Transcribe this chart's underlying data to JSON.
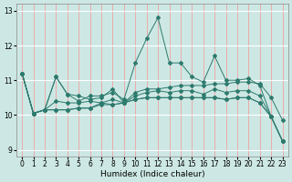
{
  "title": "",
  "xlabel": "Humidex (Indice chaleur)",
  "ylabel": "",
  "background_color": "#cde8e4",
  "grid_color": "#ffffff",
  "line_color": "#2d7a6e",
  "xlim": [
    -0.5,
    23.5
  ],
  "ylim": [
    8.8,
    13.2
  ],
  "yticks": [
    9,
    10,
    11,
    12,
    13
  ],
  "xticks": [
    0,
    1,
    2,
    3,
    4,
    5,
    6,
    7,
    8,
    9,
    10,
    11,
    12,
    13,
    14,
    15,
    16,
    17,
    18,
    19,
    20,
    21,
    22,
    23
  ],
  "series": [
    [
      11.2,
      10.05,
      10.15,
      11.1,
      10.6,
      10.4,
      10.55,
      10.55,
      10.65,
      10.45,
      11.5,
      12.2,
      12.8,
      11.5,
      11.5,
      11.1,
      10.95,
      11.7,
      11.0,
      11.0,
      11.05,
      10.85,
      9.95,
      9.25
    ],
    [
      11.2,
      10.05,
      10.15,
      10.4,
      10.35,
      10.35,
      10.4,
      10.35,
      10.45,
      10.35,
      10.65,
      10.75,
      10.75,
      10.8,
      10.85,
      10.85,
      10.85,
      10.9,
      10.9,
      10.95,
      10.95,
      10.9,
      10.5,
      9.85
    ],
    [
      11.2,
      10.05,
      10.15,
      11.1,
      10.6,
      10.55,
      10.45,
      10.5,
      10.75,
      10.35,
      10.55,
      10.65,
      10.7,
      10.65,
      10.7,
      10.7,
      10.6,
      10.75,
      10.65,
      10.7,
      10.7,
      10.55,
      9.95,
      9.25
    ],
    [
      11.2,
      10.05,
      10.15,
      10.15,
      10.15,
      10.2,
      10.2,
      10.35,
      10.3,
      10.35,
      10.45,
      10.5,
      10.5,
      10.5,
      10.5,
      10.5,
      10.5,
      10.5,
      10.45,
      10.5,
      10.5,
      10.35,
      9.95,
      9.25
    ],
    [
      11.2,
      10.05,
      10.15,
      10.15,
      10.15,
      10.2,
      10.2,
      10.3,
      10.3,
      10.35,
      10.45,
      10.5,
      10.5,
      10.5,
      10.5,
      10.5,
      10.5,
      10.5,
      10.45,
      10.5,
      10.5,
      10.35,
      9.95,
      9.25
    ]
  ]
}
